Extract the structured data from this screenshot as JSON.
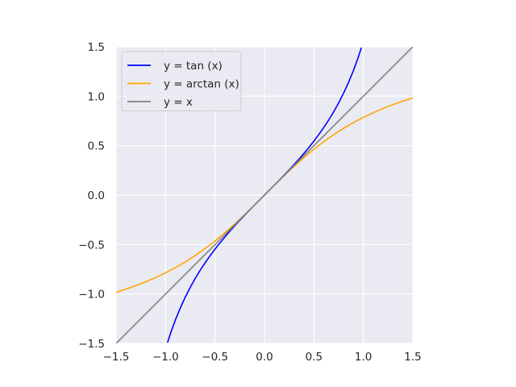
{
  "chart_data": {
    "type": "line",
    "title": "",
    "xlabel": "",
    "ylabel": "",
    "xlim": [
      -1.5,
      1.5
    ],
    "ylim": [
      -1.5,
      1.5
    ],
    "grid": true,
    "legend_position": "top-left",
    "colors": {
      "background": "#eaeaf2",
      "grid": "#ffffff"
    },
    "x_ticks": [
      {
        "value": -1.5,
        "label": "−1.5"
      },
      {
        "value": -1.0,
        "label": "−1.0"
      },
      {
        "value": -0.5,
        "label": "−0.5"
      },
      {
        "value": 0.0,
        "label": "0.0"
      },
      {
        "value": 0.5,
        "label": "0.5"
      },
      {
        "value": 1.0,
        "label": "1.0"
      },
      {
        "value": 1.5,
        "label": "1.5"
      }
    ],
    "y_ticks": [
      {
        "value": -1.5,
        "label": "−1.5"
      },
      {
        "value": -1.0,
        "label": "−1.0"
      },
      {
        "value": -0.5,
        "label": "−0.5"
      },
      {
        "value": 0.0,
        "label": "0.0"
      },
      {
        "value": 0.5,
        "label": "0.5"
      },
      {
        "value": 1.0,
        "label": "1.0"
      },
      {
        "value": 1.5,
        "label": "1.5"
      }
    ],
    "series": [
      {
        "name": "y = tan (x)",
        "color": "#0000ff",
        "x": [
          -0.98,
          -0.95,
          -0.9,
          -0.85,
          -0.8,
          -0.75,
          -0.7,
          -0.65,
          -0.6,
          -0.55,
          -0.5,
          -0.45,
          -0.4,
          -0.35,
          -0.3,
          -0.25,
          -0.2,
          -0.15,
          -0.1,
          -0.05,
          0.0,
          0.05,
          0.1,
          0.15,
          0.2,
          0.25,
          0.3,
          0.35,
          0.4,
          0.45,
          0.5,
          0.55,
          0.6,
          0.65,
          0.7,
          0.75,
          0.8,
          0.85,
          0.9,
          0.95,
          0.98
        ],
        "y": [
          -1.491,
          -1.398,
          -1.26,
          -1.14,
          -1.03,
          -0.932,
          -0.842,
          -0.76,
          -0.684,
          -0.613,
          -0.546,
          -0.483,
          -0.423,
          -0.365,
          -0.309,
          -0.255,
          -0.203,
          -0.151,
          -0.1,
          -0.05,
          0.0,
          0.05,
          0.1,
          0.151,
          0.203,
          0.255,
          0.309,
          0.365,
          0.423,
          0.483,
          0.546,
          0.613,
          0.684,
          0.76,
          0.842,
          0.932,
          1.03,
          1.14,
          1.26,
          1.398,
          1.491
        ]
      },
      {
        "name": "y = arctan (x)",
        "color": "#ffa500",
        "x": [
          -1.5,
          -1.4,
          -1.3,
          -1.2,
          -1.1,
          -1.0,
          -0.9,
          -0.8,
          -0.7,
          -0.6,
          -0.5,
          -0.4,
          -0.3,
          -0.2,
          -0.1,
          0.0,
          0.1,
          0.2,
          0.3,
          0.4,
          0.5,
          0.6,
          0.7,
          0.8,
          0.9,
          1.0,
          1.1,
          1.2,
          1.3,
          1.4,
          1.5
        ],
        "y": [
          -0.983,
          -0.951,
          -0.915,
          -0.876,
          -0.833,
          -0.785,
          -0.733,
          -0.675,
          -0.611,
          -0.54,
          -0.464,
          -0.381,
          -0.291,
          -0.197,
          -0.1,
          0.0,
          0.1,
          0.197,
          0.291,
          0.381,
          0.464,
          0.54,
          0.611,
          0.675,
          0.733,
          0.785,
          0.833,
          0.876,
          0.915,
          0.951,
          0.983
        ]
      },
      {
        "name": "y = x",
        "color": "#808080",
        "x": [
          -1.5,
          1.5
        ],
        "y": [
          -1.5,
          1.5
        ]
      }
    ]
  }
}
